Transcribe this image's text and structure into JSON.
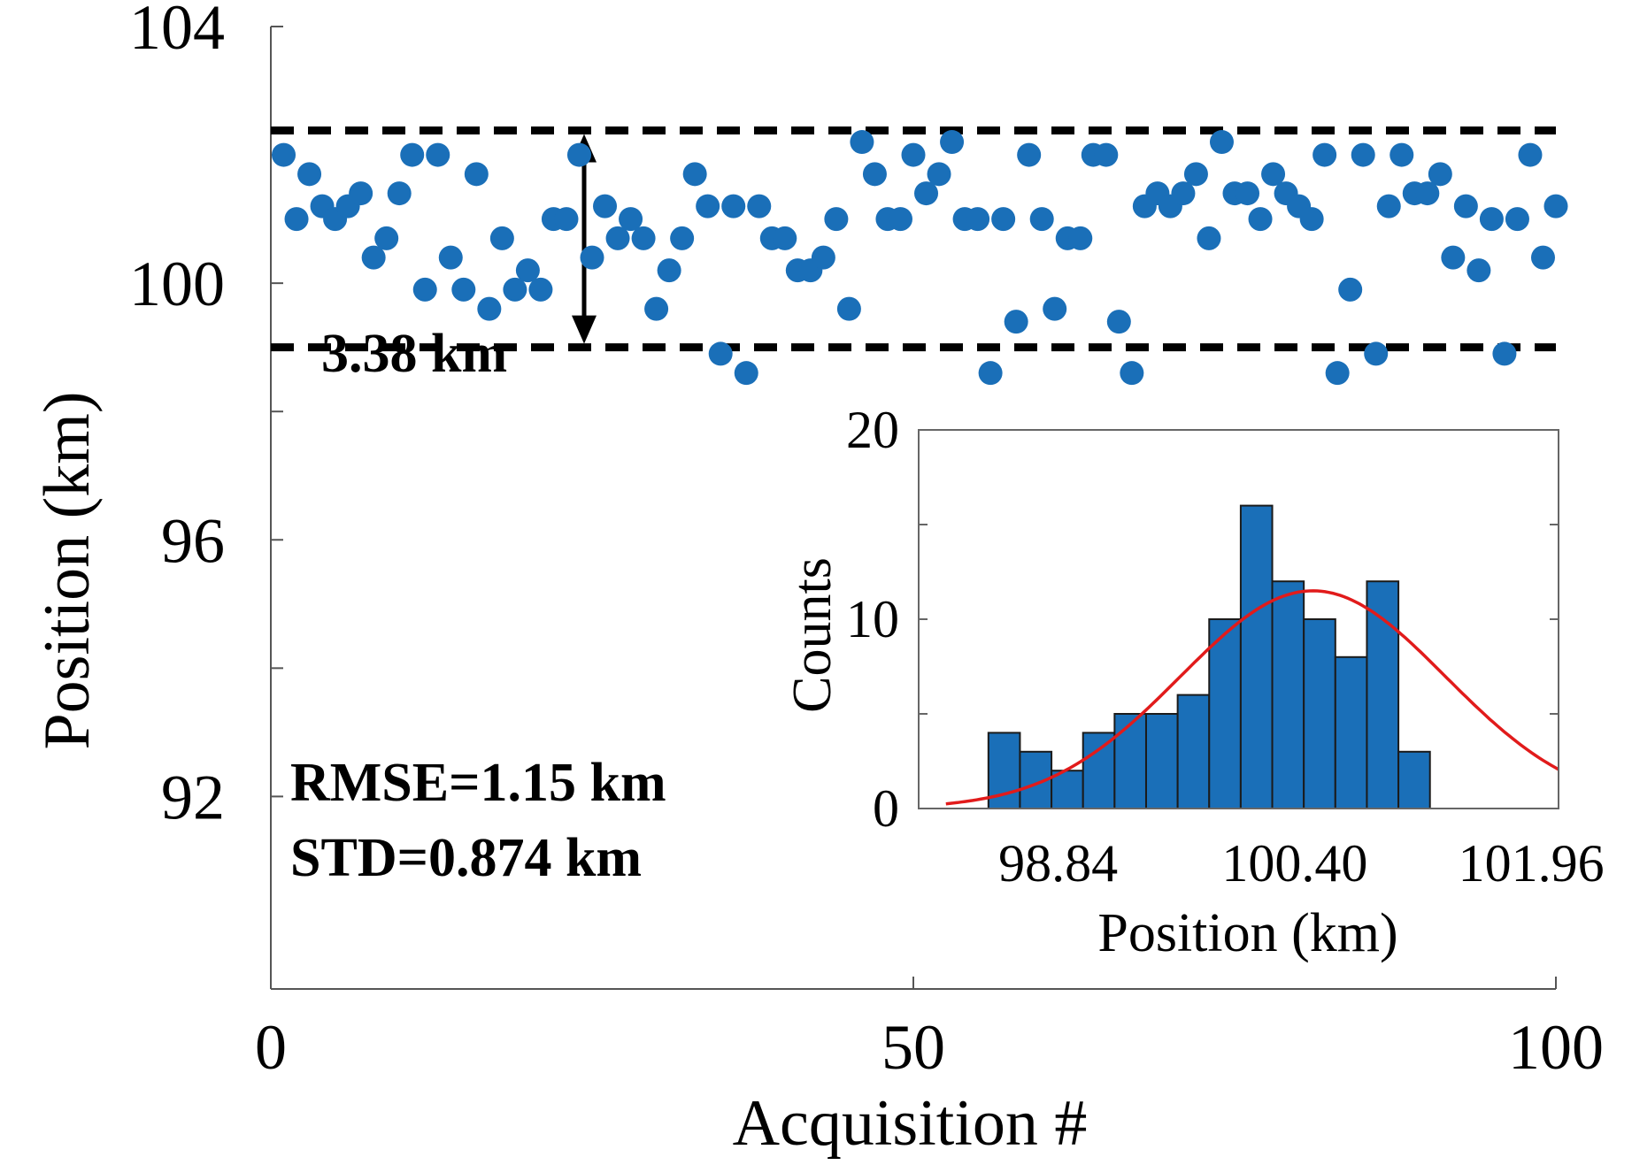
{
  "chart_data": [
    {
      "type": "scatter",
      "xlabel": "Acquisition #",
      "ylabel": "Position (km)",
      "xlim": [
        0,
        100
      ],
      "ylim": [
        89,
        104
      ],
      "xticks": [
        0,
        50,
        100
      ],
      "xtick_labels": [
        "0",
        "50",
        "100"
      ],
      "yticks": [
        92,
        96,
        100,
        104
      ],
      "ytick_labels": [
        "92",
        "96",
        "100",
        "104"
      ],
      "yminor_ticks": [
        94,
        98,
        102
      ],
      "point_color": "#1a6fb8",
      "series": [
        {
          "name": "Position",
          "x": [
            1,
            2,
            3,
            4,
            5,
            6,
            7,
            8,
            9,
            10,
            11,
            12,
            13,
            14,
            15,
            16,
            17,
            18,
            19,
            20,
            21,
            22,
            23,
            24,
            25,
            26,
            27,
            28,
            29,
            30,
            31,
            32,
            33,
            34,
            35,
            36,
            37,
            38,
            39,
            40,
            41,
            42,
            43,
            44,
            45,
            46,
            47,
            48,
            49,
            50,
            51,
            52,
            53,
            54,
            55,
            56,
            57,
            58,
            59,
            60,
            61,
            62,
            63,
            64,
            65,
            66,
            67,
            68,
            69,
            70,
            71,
            72,
            73,
            74,
            75,
            76,
            77,
            78,
            79,
            80,
            81,
            82,
            83,
            84,
            85,
            86,
            87,
            88,
            89,
            90,
            91,
            92,
            93,
            94,
            95,
            96,
            97,
            98,
            99,
            100
          ],
          "y": [
            102.0,
            101.0,
            101.7,
            101.2,
            101.0,
            101.2,
            101.4,
            100.4,
            100.7,
            101.4,
            102.0,
            99.9,
            102.0,
            100.4,
            99.9,
            101.7,
            99.6,
            100.7,
            99.9,
            100.2,
            99.9,
            101.0,
            101.0,
            102.0,
            100.4,
            101.2,
            100.7,
            101.0,
            100.7,
            99.6,
            100.2,
            100.7,
            101.7,
            101.2,
            98.9,
            101.2,
            98.6,
            101.2,
            100.7,
            100.7,
            100.2,
            100.2,
            100.4,
            101.0,
            99.6,
            102.2,
            101.7,
            101.0,
            101.0,
            102.0,
            101.4,
            101.7,
            102.2,
            101.0,
            101.0,
            98.6,
            101.0,
            99.4,
            102.0,
            101.0,
            99.6,
            100.7,
            100.7,
            102.0,
            102.0,
            99.4,
            98.6,
            101.2,
            101.4,
            101.2,
            101.4,
            101.7,
            100.7,
            102.2,
            101.4,
            101.4,
            101.0,
            101.7,
            101.4,
            101.2,
            101.0,
            102.0,
            98.6,
            99.9,
            102.0,
            98.9,
            101.2,
            102.0,
            101.4,
            101.4,
            101.7,
            100.4,
            101.2,
            100.2,
            101.0,
            98.9,
            101.0,
            102.0,
            100.4,
            101.2
          ]
        }
      ],
      "reference_lines": {
        "upper": 102.38,
        "lower": 99.0,
        "style": "dashed"
      },
      "annotations": {
        "span_label": "3.38 km",
        "rmse": "RMSE=1.15 km",
        "std": "STD=0.874 km"
      }
    },
    {
      "type": "bar",
      "subtype": "histogram",
      "xlabel": "Position (km)",
      "ylabel": "Counts",
      "xlim": [
        97.92,
        102.14
      ],
      "ylim": [
        0,
        20
      ],
      "xticks": [
        98.84,
        100.4,
        101.96
      ],
      "xtick_labels": [
        "98.84",
        "100.40",
        "101.96"
      ],
      "yticks": [
        0,
        10,
        20
      ],
      "ytick_labels": [
        "0",
        "10",
        "20"
      ],
      "yminor_ticks": [
        5,
        15
      ],
      "bar_color": "#1a6fb8",
      "bin_width": 0.208,
      "bin_starts": [
        98.38,
        98.588,
        98.796,
        99.004,
        99.212,
        99.42,
        99.628,
        99.836,
        100.044,
        100.252,
        100.46,
        100.668,
        100.876,
        101.084,
        101.292
      ],
      "values": [
        4,
        3,
        2,
        4,
        5,
        5,
        6,
        10,
        16,
        12,
        10,
        8,
        12,
        3,
        0
      ],
      "fit_curve": {
        "type": "normal",
        "mean": 100.52,
        "std": 0.874,
        "peak": 11.5,
        "color": "#e11b1b"
      }
    }
  ]
}
